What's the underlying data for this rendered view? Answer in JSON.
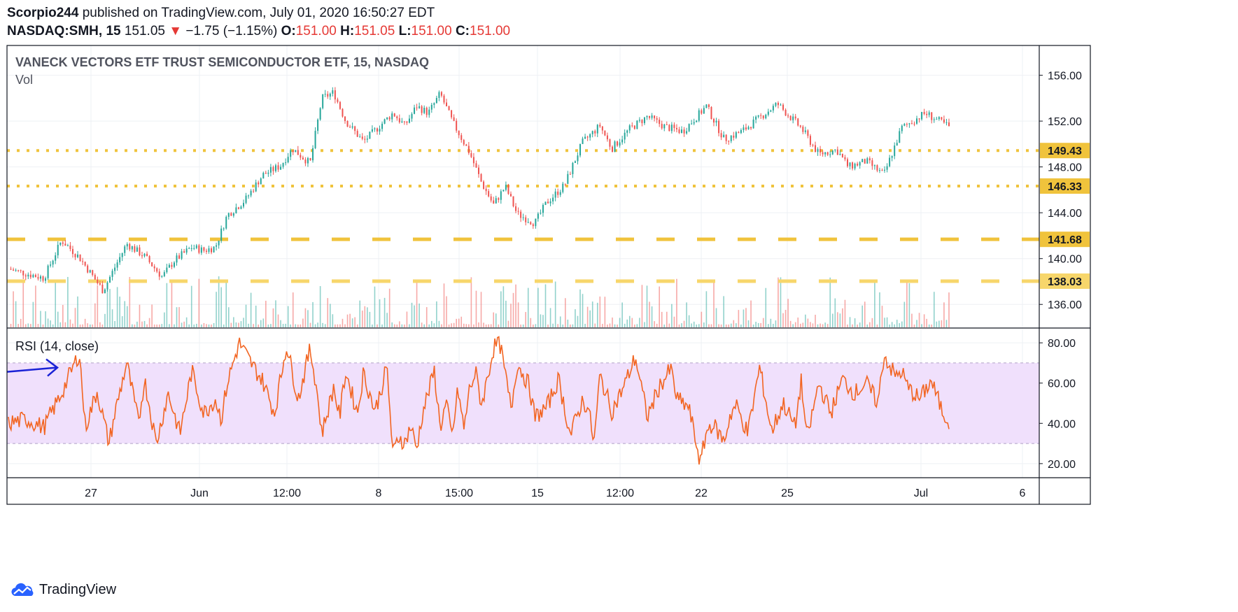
{
  "header": {
    "publisher": "Scorpio244",
    "published_text": "published on TradingView.com, July 01, 2020 16:50:27 EDT",
    "symbol": "NASDAQ:SMH, 15",
    "last": "151.05",
    "change_arrow": "▼",
    "change": "−1.75 (−1.15%)",
    "o_label": "O:",
    "o_value": "151.00",
    "h_label": "H:",
    "h_value": "151.05",
    "l_label": "L:",
    "l_value": "151.00",
    "c_label": "C:",
    "c_value": "151.00"
  },
  "chart_data": [
    {
      "type": "candlestick",
      "title": "VANECK VECTORS ETF TRUST SEMICONDUCTOR ETF, 15, NASDAQ",
      "volume_label": "Vol",
      "ylim": [
        134,
        158.6
      ],
      "y_ticks": [
        "156.00",
        "152.00",
        "148.00",
        "144.00",
        "140.00",
        "136.00"
      ],
      "y_tick_values": [
        156,
        152,
        148,
        144,
        140,
        136
      ],
      "x_tick_labels": [
        "27",
        "Jun",
        "12:00",
        "8",
        "15:00",
        "15",
        "12:00",
        "22",
        "25",
        "Jul",
        "6"
      ],
      "close_path": {
        "x": [
          0,
          6,
          9,
          12,
          16,
          20,
          23,
          26,
          28,
          31,
          33,
          35,
          37,
          40,
          43,
          46,
          48,
          51,
          53,
          55,
          57,
          60,
          62,
          65,
          67,
          69,
          71,
          73,
          75,
          78,
          80,
          82,
          84,
          86,
          89,
          91,
          94,
          97,
          100,
          102,
          105,
          108,
          111,
          114,
          118,
          121,
          124,
          127,
          130,
          134,
          137,
          140,
          142,
          145,
          148,
          151,
          155,
          159
        ],
        "y": [
          139.1,
          138.3,
          141.6,
          140.1,
          137.2,
          141.3,
          140.2,
          138.4,
          139.8,
          141.0,
          140.7,
          141.0,
          143.8,
          145.1,
          147.3,
          148.1,
          149.6,
          148.3,
          154.0,
          154.5,
          152.0,
          150.2,
          151.2,
          152.7,
          151.6,
          153.3,
          152.7,
          154.4,
          152.0,
          149.2,
          146.6,
          144.7,
          146.3,
          143.9,
          143.1,
          144.9,
          146.4,
          150.1,
          151.6,
          149.6,
          151.3,
          152.4,
          151.5,
          151.1,
          153.3,
          150.4,
          151.1,
          152.3,
          153.5,
          151.4,
          149.1,
          149.5,
          148.0,
          148.5,
          147.3,
          151.4,
          152.7,
          151.5
        ]
      },
      "horizontal_levels": [
        {
          "value": 149.43,
          "label": "149.43",
          "style": "dotted"
        },
        {
          "value": 146.33,
          "label": "146.33",
          "style": "dotted"
        },
        {
          "value": 141.68,
          "label": "141.68",
          "style": "dashed"
        },
        {
          "value": 138.03,
          "label": "138.03",
          "style": "dashed"
        }
      ],
      "colors": {
        "up": "#26a69a",
        "down": "#ef5350",
        "level": "#f0c33c",
        "level_light": "#f7d66b"
      }
    },
    {
      "type": "line",
      "title": "RSI (14, close)",
      "ylim": [
        13,
        87
      ],
      "y_ticks": [
        "80.00",
        "60.00",
        "40.00",
        "20.00"
      ],
      "y_tick_values": [
        80,
        60,
        40,
        20
      ],
      "band": [
        30,
        70
      ],
      "x": [
        0,
        3,
        6,
        9,
        12,
        13,
        15,
        17,
        18,
        20,
        22,
        23,
        25,
        27,
        29,
        31,
        33,
        35,
        36,
        37,
        39,
        41,
        43,
        45,
        47,
        49,
        51,
        52,
        53,
        55,
        56,
        57,
        59,
        60,
        62,
        64,
        65,
        66,
        67,
        68,
        69,
        70,
        72,
        73,
        74,
        75,
        76,
        77,
        78,
        79,
        80,
        82,
        83,
        85,
        86,
        88,
        89,
        91,
        93,
        95,
        97,
        98,
        99,
        100,
        102,
        104,
        106,
        108,
        110,
        112,
        113,
        115,
        117,
        118,
        119,
        121,
        122,
        123,
        125,
        127,
        129,
        131,
        133,
        134,
        135,
        137,
        139,
        141,
        143,
        145,
        147,
        148,
        150,
        151,
        152,
        154,
        156,
        158,
        160
      ],
      "values": [
        40,
        42,
        38,
        55,
        75,
        38,
        56,
        30,
        45,
        70,
        40,
        62,
        30,
        55,
        35,
        66,
        45,
        52,
        42,
        60,
        80,
        70,
        61,
        45,
        79,
        52,
        77,
        60,
        35,
        58,
        43,
        66,
        45,
        65,
        46,
        68,
        24,
        34,
        30,
        39,
        27,
        45,
        66,
        38,
        50,
        33,
        57,
        37,
        58,
        65,
        49,
        77,
        81,
        47,
        70,
        59,
        43,
        48,
        62,
        34,
        51,
        48,
        30,
        64,
        46,
        58,
        73,
        43,
        58,
        67,
        52,
        48,
        20,
        36,
        40,
        31,
        44,
        49,
        35,
        68,
        36,
        50,
        38,
        61,
        32,
        60,
        45,
        62,
        55,
        60,
        50,
        74,
        63,
        66,
        58,
        52,
        61,
        45,
        38
      ],
      "annotation": {
        "type": "arrow",
        "color": "#1a22d6"
      },
      "colors": {
        "line": "#f26522",
        "band": "#f0e0fc",
        "band_edge": "#b0a0c8"
      }
    }
  ],
  "watermark": {
    "brand": "TradingView",
    "logo": "tradingview-cloud-logo",
    "logo_color": "#2962ff"
  }
}
